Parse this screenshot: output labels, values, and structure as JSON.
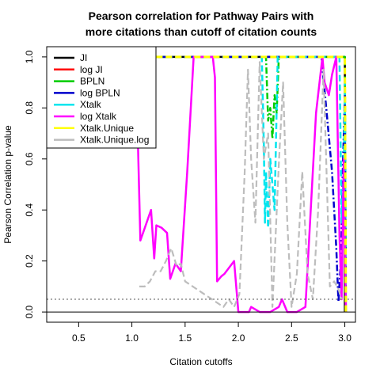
{
  "chart_data": {
    "type": "line",
    "title": [
      "Pearson correlation for Pathway Pairs with",
      "more citations than cutoff of citation counts"
    ],
    "xlabel": "Citation cutoffs",
    "ylabel": "Pearson Correlation p-value",
    "xlim": [
      0.2,
      3.1
    ],
    "ylim": [
      -0.04,
      1.04
    ],
    "xticks": [
      0.5,
      1.0,
      1.5,
      2.0,
      2.5,
      3.0
    ],
    "xtick_labels": [
      "0.5",
      "1.0",
      "1.5",
      "2.0",
      "2.5",
      "3.0"
    ],
    "yticks": [
      0.0,
      0.2,
      0.4,
      0.6,
      0.8,
      1.0
    ],
    "ytick_labels": [
      "0.0",
      "0.2",
      "0.4",
      "0.6",
      "0.8",
      "1.0"
    ],
    "grid": false,
    "legend_position": "top-left",
    "reference_lines": [
      {
        "y": 0.0,
        "style": "solid",
        "color": "#000000"
      },
      {
        "y": 0.05,
        "style": "dotted",
        "color": "#555555"
      }
    ],
    "series": [
      {
        "name": "JI",
        "color": "#000000",
        "dash": "solid",
        "width": 2.5,
        "x": [
          1.05,
          3.0,
          3.0
        ],
        "y": [
          1.0,
          1.0,
          0.0
        ]
      },
      {
        "name": "log JI",
        "color": "#ff0000",
        "dash": "dashed",
        "width": 2.5,
        "x": [
          1.05,
          3.0,
          3.01
        ],
        "y": [
          1.0,
          1.0,
          0.0
        ]
      },
      {
        "name": "BPLN",
        "color": "#00cc00",
        "dash": "dotdash",
        "width": 2.5,
        "x": [
          1.05,
          2.26,
          2.28,
          2.3,
          2.32,
          2.34,
          2.36,
          2.38,
          3.0,
          3.01
        ],
        "y": [
          1.0,
          1.0,
          0.75,
          0.8,
          0.68,
          0.85,
          0.78,
          1.0,
          1.0,
          0.0
        ]
      },
      {
        "name": "log BPLN",
        "color": "#0000cc",
        "dash": "dotdash",
        "width": 2.5,
        "x": [
          1.05,
          2.78,
          2.83,
          2.88,
          2.92,
          2.94,
          2.96,
          2.97,
          2.98,
          3.0,
          3.01
        ],
        "y": [
          1.0,
          1.0,
          0.78,
          0.55,
          0.25,
          0.04,
          0.18,
          0.3,
          0.55,
          0.85,
          0.0
        ]
      },
      {
        "name": "Xtalk",
        "color": "#00e5ee",
        "dash": "dashed",
        "width": 2.5,
        "x": [
          1.05,
          2.22,
          2.24,
          2.25,
          2.26,
          2.28,
          2.3,
          2.34,
          2.37,
          2.95,
          2.97,
          2.99,
          3.0,
          3.01
        ],
        "y": [
          1.0,
          1.0,
          0.65,
          0.35,
          0.55,
          0.33,
          0.6,
          0.4,
          1.0,
          1.0,
          0.35,
          0.55,
          0.9,
          0.0
        ]
      },
      {
        "name": "log Xtalk",
        "color": "#ff00ff",
        "dash": "solid",
        "width": 2.5,
        "x": [
          1.05,
          1.08,
          1.18,
          1.21,
          1.23,
          1.28,
          1.33,
          1.36,
          1.41,
          1.46,
          1.52,
          1.58,
          1.76,
          1.78,
          1.8,
          1.84,
          1.87,
          1.96,
          2.0,
          2.05,
          2.1,
          2.12,
          2.2,
          2.3,
          2.38,
          2.41,
          2.46,
          2.55,
          2.63,
          2.68,
          2.73,
          2.79,
          2.81,
          2.85,
          2.88,
          2.92,
          2.95,
          2.97,
          2.99,
          3.01
        ],
        "y": [
          0.78,
          0.28,
          0.4,
          0.21,
          0.34,
          0.33,
          0.31,
          0.13,
          0.19,
          0.16,
          0.55,
          1.0,
          1.0,
          0.92,
          0.12,
          0.14,
          0.15,
          0.2,
          0.0,
          0.0,
          0.0,
          0.02,
          0.0,
          0.0,
          0.02,
          0.05,
          0.0,
          0.0,
          0.02,
          0.4,
          0.78,
          1.0,
          0.9,
          0.85,
          0.93,
          1.0,
          0.3,
          0.05,
          0.6,
          0.0
        ]
      },
      {
        "name": "Xtalk.Unique",
        "color": "#ffff00",
        "dash": "dashed",
        "width": 3,
        "x": [
          1.05,
          3.0,
          3.01
        ],
        "y": [
          1.0,
          1.0,
          0.0
        ]
      },
      {
        "name": "Xtalk.Unique.log",
        "color": "#bdbdbd",
        "dash": "dashed",
        "width": 2.2,
        "x": [
          1.07,
          1.12,
          1.17,
          1.22,
          1.27,
          1.32,
          1.37,
          1.42,
          1.46,
          1.5,
          1.86,
          1.91,
          1.96,
          2.01,
          2.06,
          2.09,
          2.12,
          2.16,
          2.2,
          2.24,
          2.28,
          2.32,
          2.38,
          2.42,
          2.46,
          2.5,
          2.55,
          2.6,
          2.65,
          2.7,
          2.75,
          2.8,
          2.86,
          2.9,
          2.94,
          2.97
        ],
        "y": [
          0.1,
          0.1,
          0.12,
          0.16,
          0.16,
          0.2,
          0.25,
          0.18,
          0.19,
          0.12,
          0.02,
          0.05,
          0.02,
          0.07,
          0.55,
          0.95,
          0.6,
          0.35,
          0.98,
          0.6,
          0.7,
          0.02,
          0.58,
          0.9,
          0.35,
          0.02,
          0.15,
          0.55,
          0.15,
          0.05,
          0.4,
          0.95,
          0.1,
          0.12,
          0.09,
          0.05
        ]
      }
    ]
  }
}
